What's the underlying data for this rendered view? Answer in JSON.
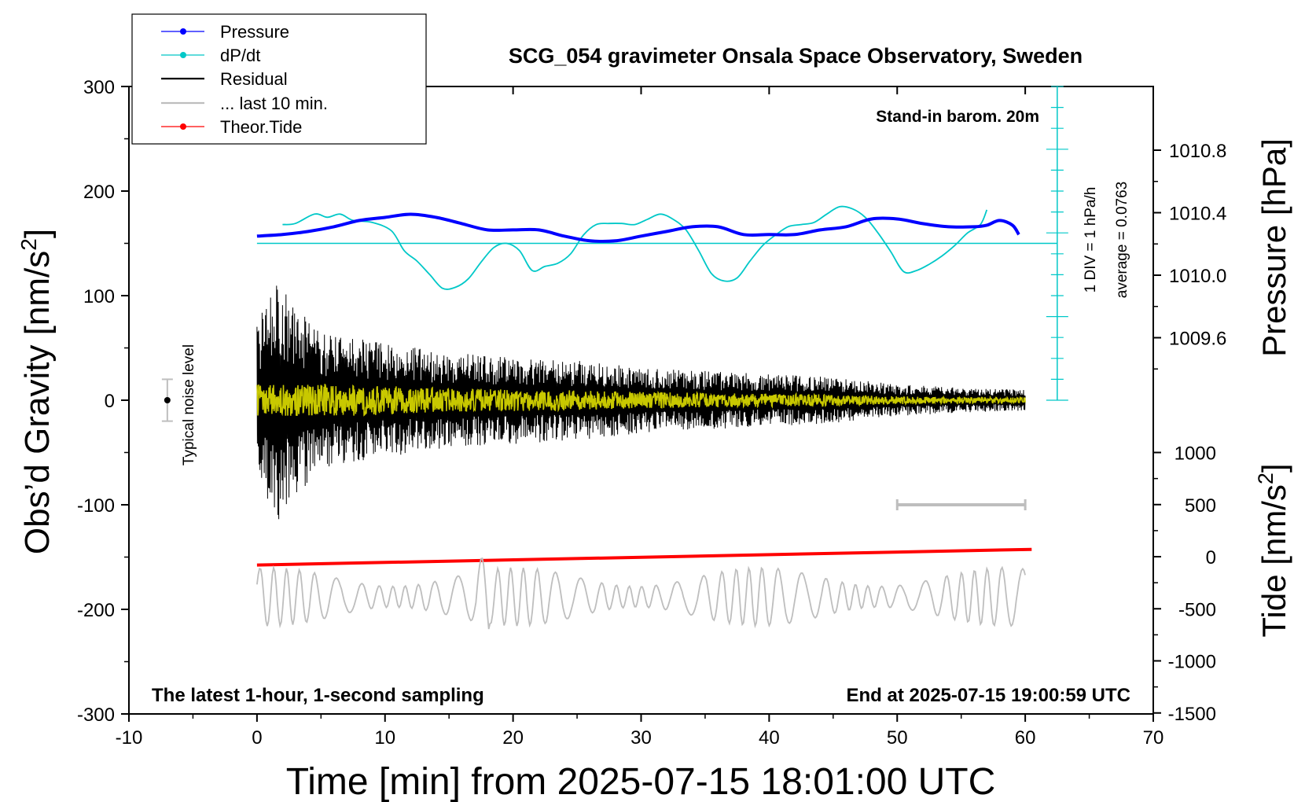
{
  "chart_data": {
    "type": "line",
    "title": "SCG_054 gravimeter Onsala Space Observatory, Sweden",
    "xlabel": "Time [min] from 2025-07-15 18:01:00 UTC",
    "ylabel": "Obs’d Gravity [nm/s²]",
    "ylabel_text": "Obs’d Gravity [nm/s",
    "ylabel_unit_close": "]",
    "y2label": "Pressure [hPa]",
    "y3label_text": "Tide [nm/s",
    "y3label_unit_close": "]",
    "xlim": [
      -10,
      70
    ],
    "ylim": [
      -300,
      300
    ],
    "x_ticks": [
      "-10",
      "0",
      "10",
      "20",
      "30",
      "40",
      "50",
      "60",
      "70"
    ],
    "y_ticks": [
      "300",
      "200",
      "100",
      "0",
      "-100",
      "-200",
      "-300"
    ],
    "pressure_ticks": [
      "1010.8",
      "1010.4",
      "1010.0",
      "1009.6"
    ],
    "tide_ticks": [
      "1000",
      "500",
      "0",
      "-500",
      "-1000",
      "-1500"
    ],
    "grid": false,
    "legend_position": "top-left",
    "legend": [
      {
        "name": "Pressure",
        "color": "#0000ff"
      },
      {
        "name": "dP/dt",
        "color": "#00c8c8"
      },
      {
        "name": "Residual",
        "color": "#000000"
      },
      {
        "name": "... last 10 min.",
        "color": "#bebebe"
      },
      {
        "name": "Theor.Tide",
        "color": "#ff0000"
      }
    ],
    "annotations": {
      "stand_in": "Stand-in barom. 20m",
      "div_label": "1 DIV = 1 hPa/h",
      "average_label": "average = 0.0763",
      "noise_label": "Typical noise level",
      "latest": "The latest 1-hour, 1-second sampling",
      "end_at": "End at 2025-07-15 19:00:59 UTC"
    },
    "noise_level": {
      "x": -7,
      "y": 0,
      "err": 20
    },
    "last10_bar": {
      "x_start": 50,
      "x_end": 60,
      "y": -100
    },
    "series": [
      {
        "name": "Pressure",
        "unit": "hPa",
        "color": "#0000ff",
        "x": [
          0,
          2,
          4,
          6,
          8,
          10,
          12,
          14,
          16,
          18,
          20,
          22,
          24,
          26,
          28,
          30,
          32,
          34,
          36,
          38,
          40,
          42,
          44,
          46,
          48,
          50,
          52,
          54,
          56,
          57,
          58,
          59,
          59.5
        ],
        "values": [
          1010.25,
          1010.26,
          1010.28,
          1010.31,
          1010.35,
          1010.37,
          1010.39,
          1010.37,
          1010.33,
          1010.29,
          1010.29,
          1010.29,
          1010.25,
          1010.22,
          1010.22,
          1010.25,
          1010.28,
          1010.31,
          1010.31,
          1010.26,
          1010.26,
          1010.26,
          1010.29,
          1010.31,
          1010.36,
          1010.36,
          1010.33,
          1010.31,
          1010.31,
          1010.32,
          1010.35,
          1010.32,
          1010.26
        ]
      },
      {
        "name": "dP/dt",
        "unit": "nm/s² (plotted on gravity axis, baseline 150)",
        "color": "#00c8c8",
        "x": [
          2,
          3,
          4.5,
          5.5,
          6.5,
          7.5,
          9,
          10.5,
          11.5,
          12.5,
          13.5,
          14.5,
          15.5,
          16.5,
          17.5,
          18.5,
          19.5,
          20.5,
          21.5,
          22.5,
          23.5,
          24.5,
          25.5,
          26.5,
          27.5,
          28.5,
          29.5,
          30.5,
          31.5,
          32.5,
          33.5,
          34.5,
          35.5,
          36.5,
          37.5,
          38.5,
          39.5,
          40.5,
          41.5,
          42.5,
          43.5,
          44.5,
          45.5,
          46.5,
          47.5,
          48.5,
          49.5,
          50.5,
          51.5,
          52.5,
          53.5,
          54.5,
          55.5,
          56.5,
          57
        ],
        "values": [
          168,
          169,
          178,
          175,
          178,
          172,
          170,
          162,
          143,
          133,
          120,
          107,
          108,
          116,
          132,
          146,
          150,
          143,
          124,
          128,
          131,
          140,
          158,
          168,
          169,
          169,
          168,
          173,
          178,
          173,
          163,
          143,
          121,
          114,
          117,
          133,
          148,
          158,
          166,
          168,
          170,
          178,
          185,
          183,
          175,
          160,
          142,
          123,
          124,
          130,
          138,
          148,
          160,
          168,
          182
        ]
      },
      {
        "name": "Residual",
        "unit": "nm/s²",
        "color": "#000000",
        "envelope": {
          "x": [
            0,
            1.7,
            5,
            10,
            15,
            20,
            25,
            30,
            35,
            40,
            45,
            50,
            55,
            60
          ],
          "amplitude": [
            80,
            115,
            65,
            55,
            45,
            42,
            38,
            32,
            28,
            25,
            22,
            15,
            12,
            10
          ]
        }
      },
      {
        "name": "... last 10 min.",
        "unit": "nm/s² (plotted on gravity axis)",
        "color": "#bebebe",
        "baseline": -188,
        "amplitude_range": [
          10,
          28
        ]
      },
      {
        "name": "Theor.Tide",
        "unit": "nm/s²",
        "color": "#ff0000",
        "x": [
          0,
          60.5
        ],
        "values": [
          -80,
          70
        ]
      }
    ]
  }
}
